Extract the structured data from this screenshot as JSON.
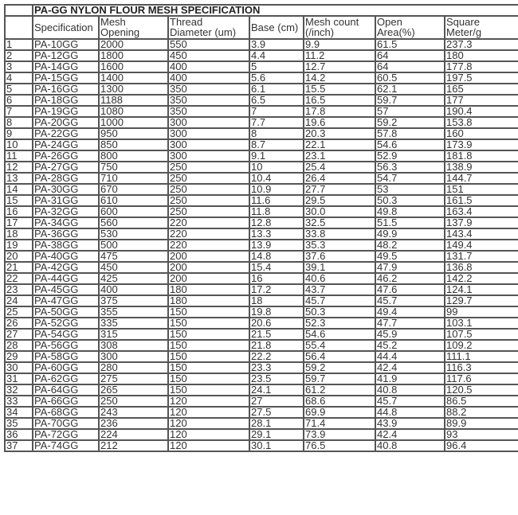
{
  "title": "PA-GG NYLON FLOUR MESH SPECIFICATION",
  "headers": [
    "",
    "Specification",
    "Mesh\nOpening",
    "Thread\nDiameter (um)",
    "Base (cm)",
    "Mesh count\n(/inch)",
    "Open\nArea(%)",
    "Square\nMeter/g"
  ],
  "rows": [
    [
      "1",
      "PA-10GG",
      "2000",
      "550",
      "3.9",
      "9.9",
      "61.5",
      "237.3"
    ],
    [
      "2",
      "PA-12GG",
      "1800",
      "450",
      "4.4",
      "11.2",
      "64",
      "180"
    ],
    [
      "3",
      "PA-14GG",
      "1600",
      "400",
      "5",
      "12.7",
      "64",
      "177.8"
    ],
    [
      "4",
      "PA-15GG",
      "1400",
      "400",
      "5.6",
      "14.2",
      "60.5",
      "197.5"
    ],
    [
      "5",
      "PA-16GG",
      "1300",
      "350",
      "6.1",
      "15.5",
      "62.1",
      "165"
    ],
    [
      "6",
      "PA-18GG",
      "1188",
      "350",
      "6.5",
      "16.5",
      "59.7",
      "177"
    ],
    [
      "7",
      "PA-19GG",
      "1080",
      "350",
      "7",
      "17.8",
      "57",
      "190.4"
    ],
    [
      "8",
      "PA-20GG",
      "1000",
      "300",
      "7.7",
      "19.6",
      "59.2",
      "153.8"
    ],
    [
      "9",
      "PA-22GG",
      "950",
      "300",
      "8",
      "20.3",
      "57.8",
      "160"
    ],
    [
      "10",
      "PA-24GG",
      "850",
      "300",
      "8.7",
      "22.1",
      "54.6",
      "173.9"
    ],
    [
      "11",
      "PA-26GG",
      "800",
      "300",
      "9.1",
      "23.1",
      "52.9",
      "181.8"
    ],
    [
      "12",
      "PA-27GG",
      "750",
      "250",
      "10",
      "25.4",
      "56.3",
      "138.9"
    ],
    [
      "13",
      "PA-28GG",
      "710",
      "250",
      "10.4",
      "26.4",
      "54.7",
      "144.7"
    ],
    [
      "14",
      "PA-30GG",
      "670",
      "250",
      "10.9",
      "27.7",
      "53",
      "151"
    ],
    [
      "15",
      "PA-31GG",
      "610",
      "250",
      "11.6",
      "29.5",
      "50.3",
      "161.5"
    ],
    [
      "16",
      "PA-32GG",
      "600",
      "250",
      "11.8",
      "30.0",
      "49.8",
      "163.4"
    ],
    [
      "17",
      "PA-34GG",
      "560",
      "220",
      "12.8",
      "32.5",
      "51.5",
      "137.9"
    ],
    [
      "18",
      "PA-36GG",
      "530",
      "220",
      "13.3",
      "33.8",
      "49.9",
      "143.4"
    ],
    [
      "19",
      "PA-38GG",
      "500",
      "220",
      "13.9",
      "35.3",
      "48.2",
      "149.4"
    ],
    [
      "20",
      "PA-40GG",
      "475",
      "200",
      "14.8",
      "37.6",
      "49.5",
      "131.7"
    ],
    [
      "21",
      "PA-42GG",
      "450",
      "200",
      "15.4",
      "39.1",
      "47.9",
      "136.8"
    ],
    [
      "22",
      "PA-44GG",
      "425",
      "200",
      "16",
      "40.6",
      "46.2",
      "142.2"
    ],
    [
      "23",
      "PA-45GG",
      "400",
      "180",
      "17.2",
      "43.7",
      "47.6",
      "124.1"
    ],
    [
      "24",
      "PA-47GG",
      "375",
      "180",
      "18",
      "45.7",
      "45.7",
      "129.7"
    ],
    [
      "25",
      "PA-50GG",
      "355",
      "150",
      "19.8",
      "50.3",
      "49.4",
      "99"
    ],
    [
      "26",
      "PA-52GG",
      "335",
      "150",
      "20.6",
      "52.3",
      "47.7",
      "103.1"
    ],
    [
      "27",
      "PA-54GG",
      "315",
      "150",
      "21.5",
      "54.6",
      "45.9",
      "107.5"
    ],
    [
      "28",
      "PA-56GG",
      "308",
      "150",
      "21.8",
      "55.4",
      "45.2",
      "109.2"
    ],
    [
      "29",
      "PA-58GG",
      "300",
      "150",
      "22.2",
      "56.4",
      "44.4",
      "111.1"
    ],
    [
      "30",
      "PA-60GG",
      "280",
      "150",
      "23.3",
      "59.2",
      "42.4",
      "116.3"
    ],
    [
      "31",
      "PA-62GG",
      "275",
      "150",
      "23.5",
      "59.7",
      "41.9",
      "117.6"
    ],
    [
      "32",
      "PA-64GG",
      "265",
      "150",
      "24.1",
      "61.2",
      "40.8",
      "120.5"
    ],
    [
      "33",
      "PA-66GG",
      "250",
      "120",
      "27",
      "68.6",
      "45.7",
      "86.5"
    ],
    [
      "34",
      "PA-68GG",
      "243",
      "120",
      "27.5",
      "69.9",
      "44.8",
      "88.2"
    ],
    [
      "35",
      "PA-70GG",
      "236",
      "120",
      "28.1",
      "71.4",
      "43.9",
      "89.9"
    ],
    [
      "36",
      "PA-72GG",
      "224",
      "120",
      "29.1",
      "73.9",
      "42.4",
      "93"
    ],
    [
      "37",
      "PA-74GG",
      "212",
      "120",
      "30.1",
      "76.5",
      "40.8",
      "96.4"
    ]
  ]
}
